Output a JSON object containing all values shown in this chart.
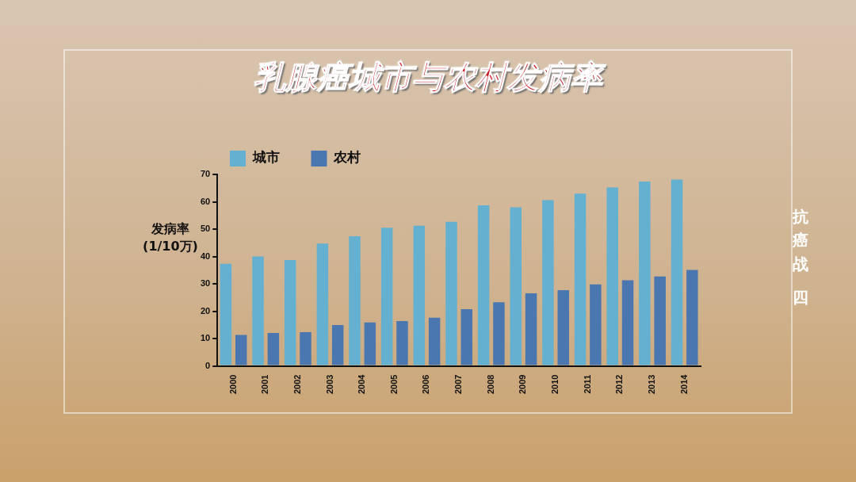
{
  "chart_data": {
    "type": "bar",
    "title": "乳腺癌城市与农村发病率",
    "ylabel": "发病率\n(1/10万)",
    "annotations": [
      "抗癌战",
      "四"
    ],
    "categories": [
      "2000",
      "2001",
      "2002",
      "2003",
      "2004",
      "2005",
      "2006",
      "2007",
      "2008",
      "2009",
      "2010",
      "2011",
      "2012",
      "2013",
      "2014"
    ],
    "series": [
      {
        "name": "城市",
        "color": "#63b0d0",
        "values": [
          37.3,
          40,
          38.7,
          44.7,
          47.4,
          50.5,
          51.2,
          52.7,
          58.7,
          58,
          60.6,
          63,
          65.2,
          67.4,
          68.1
        ]
      },
      {
        "name": "农村",
        "color": "#4a77b0",
        "values": [
          11.3,
          12,
          12.3,
          14.9,
          15.9,
          16.4,
          17.6,
          20.7,
          23.3,
          26.5,
          27.7,
          29.8,
          31.3,
          32.7,
          35.1
        ]
      }
    ],
    "ylim": [
      0,
      70
    ],
    "yticks": [
      0,
      10,
      20,
      30,
      40,
      50,
      60,
      70
    ],
    "grid": false,
    "legend": "top left"
  }
}
